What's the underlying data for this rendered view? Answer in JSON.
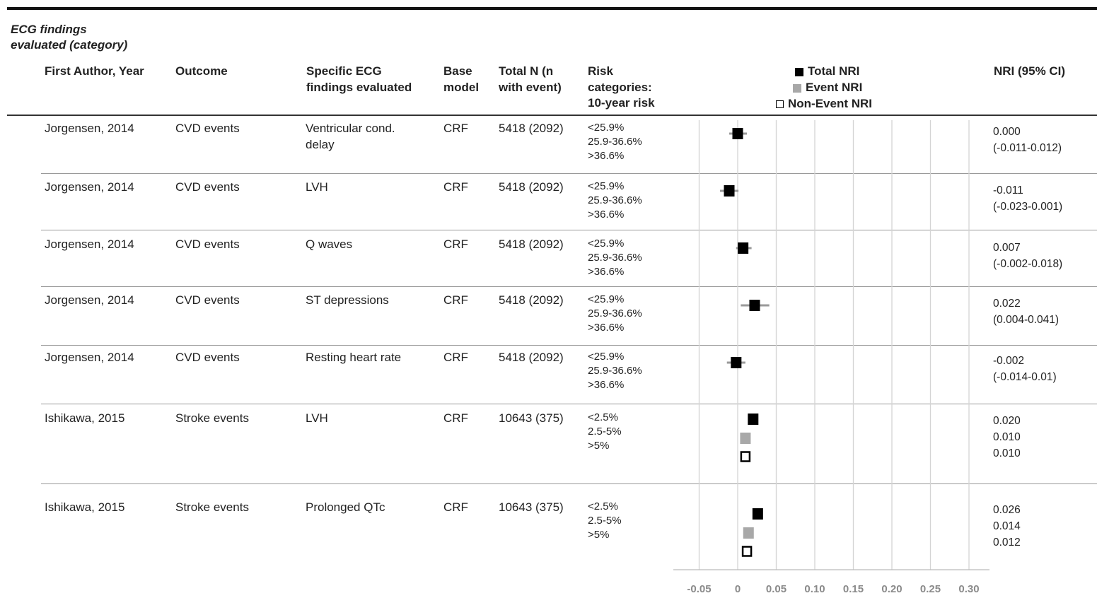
{
  "section_title": "ECG findings evaluated (category)",
  "section_title_lines": [
    "ECG findings",
    "evaluated (category)"
  ],
  "headers": {
    "author": "First Author, Year",
    "outcome": "Outcome",
    "findings": [
      "Specific ECG",
      "findings evaluated"
    ],
    "base": [
      "Base",
      "model"
    ],
    "totaln": [
      "Total N (n",
      "with event)"
    ],
    "risk": [
      "Risk",
      "categories:",
      "10-year risk"
    ],
    "nri": "NRI (95% CI)"
  },
  "legend": [
    {
      "label": "Total NRI",
      "color": "#000000",
      "style": "filled"
    },
    {
      "label": "Event NRI",
      "color": "#a8a8a8",
      "style": "filled"
    },
    {
      "label": "Non-Event NRI",
      "color": "#000000",
      "style": "open"
    }
  ],
  "rows": [
    {
      "author": "Jorgensen, 2014",
      "outcome": "CVD events",
      "finding": [
        "Ventricular cond.",
        "delay"
      ],
      "base": "CRF",
      "totaln": "5418 (2092)",
      "risk": [
        "<25.9%",
        "25.9-36.6%",
        ">36.6%"
      ],
      "nri": [
        "0.000",
        "(-0.011-0.012)"
      ]
    },
    {
      "author": "Jorgensen, 2014",
      "outcome": "CVD events",
      "finding": [
        "LVH"
      ],
      "base": "CRF",
      "totaln": "5418 (2092)",
      "risk": [
        "<25.9%",
        "25.9-36.6%",
        ">36.6%"
      ],
      "nri": [
        "-0.011",
        "(-0.023-0.001)"
      ]
    },
    {
      "author": "Jorgensen, 2014",
      "outcome": "CVD events",
      "finding": [
        "Q waves"
      ],
      "base": "CRF",
      "totaln": "5418 (2092)",
      "risk": [
        "<25.9%",
        "25.9-36.6%",
        ">36.6%"
      ],
      "nri": [
        "0.007",
        "(-0.002-0.018)"
      ]
    },
    {
      "author": "Jorgensen, 2014",
      "outcome": "CVD events",
      "finding": [
        "ST depressions"
      ],
      "base": "CRF",
      "totaln": "5418 (2092)",
      "risk": [
        "<25.9%",
        "25.9-36.6%",
        ">36.6%"
      ],
      "nri": [
        "0.022",
        "(0.004-0.041)"
      ]
    },
    {
      "author": "Jorgensen, 2014",
      "outcome": "CVD events",
      "finding": [
        "Resting heart rate"
      ],
      "base": "CRF",
      "totaln": "5418 (2092)",
      "risk": [
        "<25.9%",
        "25.9-36.6%",
        ">36.6%"
      ],
      "nri": [
        "-0.002",
        "(-0.014-0.01)"
      ]
    },
    {
      "author": "Ishikawa, 2015",
      "outcome": "Stroke events",
      "finding": [
        "LVH"
      ],
      "base": "CRF",
      "totaln": "10643 (375)",
      "risk": [
        "<2.5%",
        "2.5-5%",
        ">5%"
      ],
      "nri": [
        "0.020",
        "0.010",
        "0.010"
      ]
    },
    {
      "author": "Ishikawa, 2015",
      "outcome": "Stroke events",
      "finding": [
        "Prolonged QTc"
      ],
      "base": "CRF",
      "totaln": "10643 (375)",
      "risk": [
        "<2.5%",
        "2.5-5%",
        ">5%"
      ],
      "nri": [
        "0.026",
        "0.014",
        "0.012"
      ]
    }
  ],
  "chart_data": {
    "type": "scatter",
    "subtype": "forest-plot",
    "x_ticks": [
      "-0.05",
      "0",
      "0.05",
      "0.10",
      "0.15",
      "0.20",
      "0.25",
      "0.30"
    ],
    "xlim": [
      -0.05,
      0.3
    ],
    "grid": true,
    "legend_position": "top",
    "series": [
      {
        "name": "Total NRI",
        "color": "#000000",
        "marker": "filled-square",
        "points": [
          {
            "row": 0,
            "x": 0.0,
            "ci": [
              -0.011,
              0.012
            ]
          },
          {
            "row": 1,
            "x": -0.011,
            "ci": [
              -0.023,
              0.001
            ]
          },
          {
            "row": 2,
            "x": 0.007,
            "ci": [
              -0.002,
              0.018
            ]
          },
          {
            "row": 3,
            "x": 0.022,
            "ci": [
              0.004,
              0.041
            ]
          },
          {
            "row": 4,
            "x": -0.002,
            "ci": [
              -0.014,
              0.01
            ]
          },
          {
            "row": 5,
            "x": 0.02
          },
          {
            "row": 6,
            "x": 0.026
          }
        ]
      },
      {
        "name": "Event NRI",
        "color": "#a8a8a8",
        "marker": "filled-square",
        "points": [
          {
            "row": 5,
            "x": 0.01
          },
          {
            "row": 6,
            "x": 0.014
          }
        ]
      },
      {
        "name": "Non-Event NRI",
        "color": "#000000",
        "marker": "open-square",
        "points": [
          {
            "row": 5,
            "x": 0.01
          },
          {
            "row": 6,
            "x": 0.012
          }
        ]
      }
    ]
  }
}
